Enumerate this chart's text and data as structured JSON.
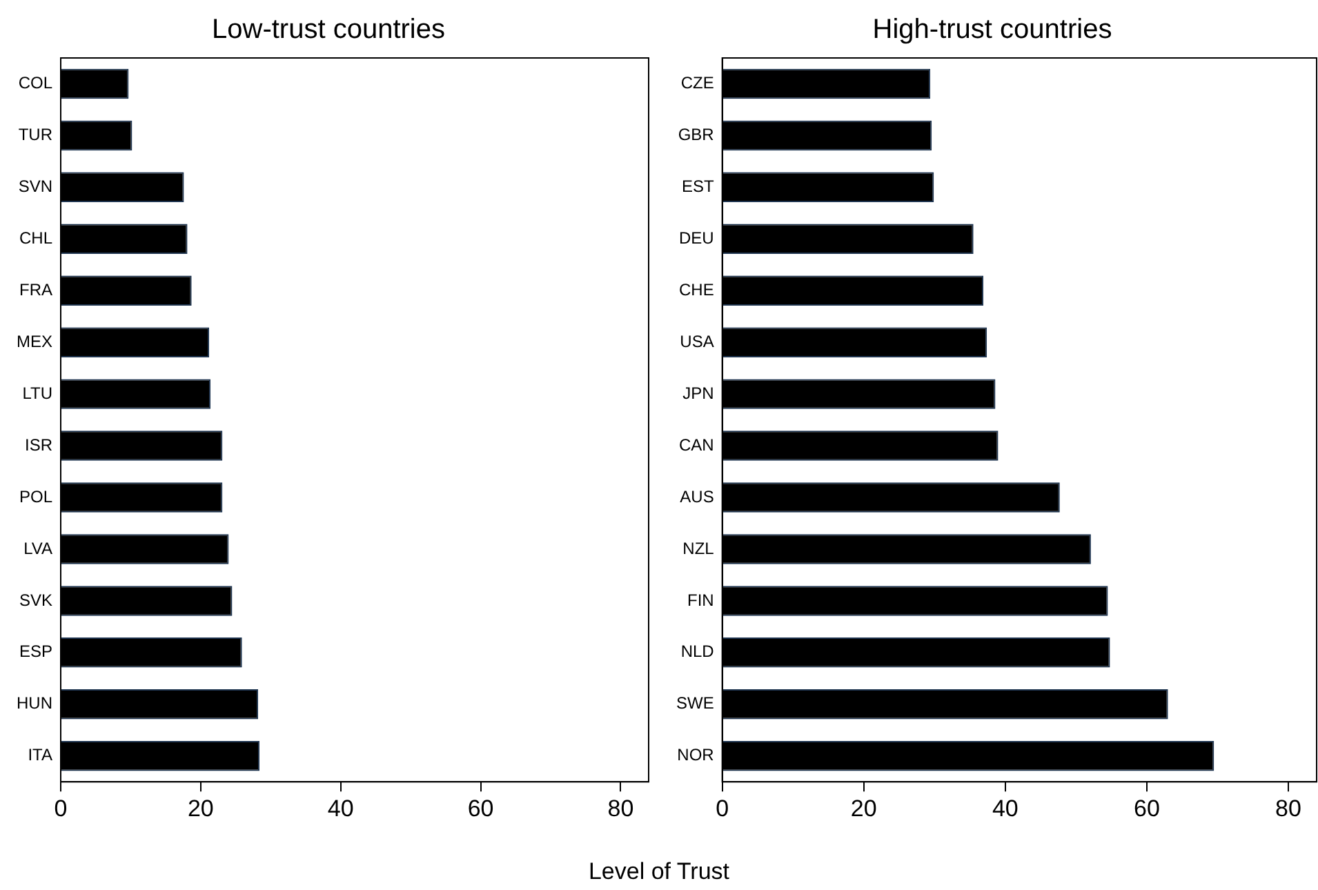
{
  "chart_data": [
    {
      "type": "bar",
      "orientation": "horizontal",
      "title": "Low-trust countries",
      "xlabel": "Level of Trust",
      "color": "#000000",
      "categories": [
        "COL",
        "TUR",
        "SVN",
        "CHL",
        "FRA",
        "MEX",
        "LTU",
        "ISR",
        "POL",
        "LVA",
        "SVK",
        "ESP",
        "HUN",
        "ITA"
      ],
      "values": [
        9.7,
        10.2,
        17.6,
        18.1,
        18.7,
        21.2,
        21.4,
        23.1,
        23.1,
        24.0,
        24.5,
        25.9,
        28.2,
        28.4
      ],
      "xlim": [
        0,
        84
      ],
      "xticks": [
        0,
        20,
        40,
        60,
        80
      ]
    },
    {
      "type": "bar",
      "orientation": "horizontal",
      "title": "High-trust countries",
      "color": "#000000",
      "categories": [
        "CZE",
        "GBR",
        "EST",
        "DEU",
        "CHE",
        "USA",
        "JPN",
        "CAN",
        "AUS",
        "NZL",
        "FIN",
        "NLD",
        "SWE",
        "NOR"
      ],
      "values": [
        29.4,
        29.6,
        29.9,
        35.5,
        36.9,
        37.4,
        38.6,
        39.0,
        47.7,
        52.1,
        54.5,
        54.8,
        63.0,
        69.5
      ],
      "xlim": [
        0,
        84
      ],
      "xticks": [
        0,
        20,
        40,
        60,
        80
      ]
    }
  ]
}
